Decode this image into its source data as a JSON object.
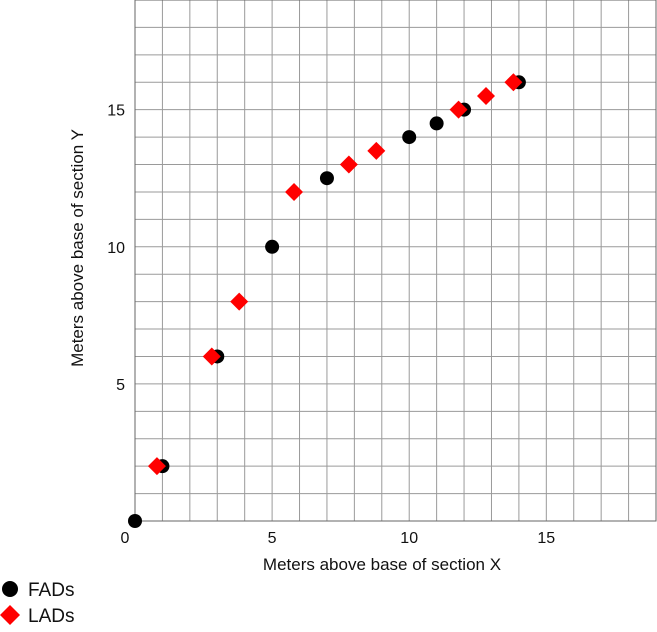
{
  "chart_data": {
    "type": "scatter",
    "title": "",
    "xlabel": "Meters above base of section X",
    "ylabel": "Meters above base of section Y",
    "xlim": [
      0,
      19
    ],
    "ylim": [
      0,
      19
    ],
    "x_ticks": [
      0,
      5,
      10,
      15
    ],
    "y_ticks": [
      5,
      10,
      15
    ],
    "tick_labels_x": [
      "0",
      "5",
      "10",
      "15"
    ],
    "tick_labels_y": [
      "5",
      "10",
      "15"
    ],
    "grid": true,
    "grid_step": 1,
    "legend_position": "bottom-left, below plot",
    "series": [
      {
        "name": "FADs",
        "marker": "circle",
        "color": "#000000",
        "points": [
          {
            "x": 0,
            "y": 0
          },
          {
            "x": 1,
            "y": 2
          },
          {
            "x": 3,
            "y": 6
          },
          {
            "x": 5,
            "y": 10
          },
          {
            "x": 7,
            "y": 12.5
          },
          {
            "x": 10,
            "y": 14
          },
          {
            "x": 11,
            "y": 14.5
          },
          {
            "x": 12,
            "y": 15
          },
          {
            "x": 14,
            "y": 16
          }
        ]
      },
      {
        "name": "LADs",
        "marker": "diamond",
        "color": "#ff0000",
        "points": [
          {
            "x": 0.8,
            "y": 2
          },
          {
            "x": 2.8,
            "y": 6
          },
          {
            "x": 3.8,
            "y": 8
          },
          {
            "x": 5.8,
            "y": 12
          },
          {
            "x": 7.8,
            "y": 13
          },
          {
            "x": 8.8,
            "y": 13.5
          },
          {
            "x": 11.8,
            "y": 15
          },
          {
            "x": 12.8,
            "y": 15.5
          },
          {
            "x": 13.8,
            "y": 16
          }
        ]
      }
    ]
  }
}
